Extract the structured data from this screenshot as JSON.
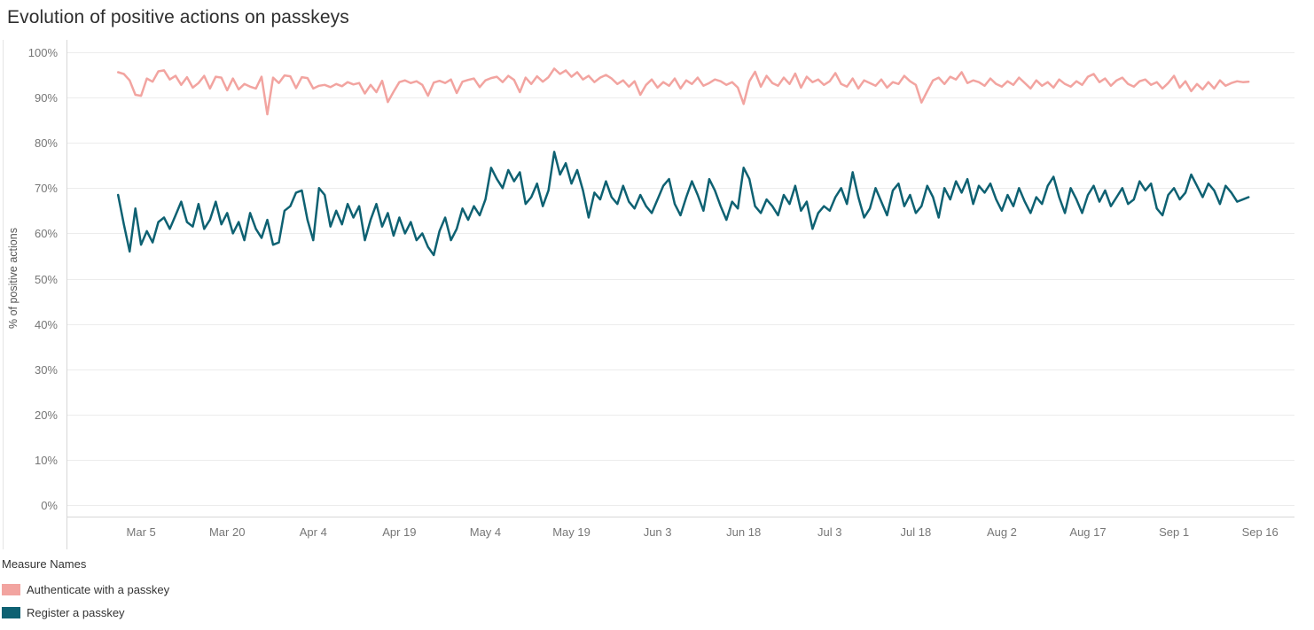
{
  "title": "Evolution of positive actions on passkeys",
  "chart_data": {
    "type": "line",
    "title": "Evolution of positive actions on passkeys",
    "xlabel": "",
    "ylabel": "% of positive actions",
    "ylim": [
      0,
      100
    ],
    "y_tick_step": 10,
    "y_tick_labels": [
      "0%",
      "10%",
      "20%",
      "30%",
      "40%",
      "50%",
      "60%",
      "70%",
      "80%",
      "90%",
      "100%"
    ],
    "grid": true,
    "legend_title": "Measure Names",
    "legend_position": "bottom-left",
    "x_unit": "day (index 0 = Mar 1, daily points)",
    "x_domain": [
      -9,
      205
    ],
    "x_ticks": [
      {
        "day": 4,
        "label": "Mar 5"
      },
      {
        "day": 19,
        "label": "Mar 20"
      },
      {
        "day": 34,
        "label": "Apr 4"
      },
      {
        "day": 49,
        "label": "Apr 19"
      },
      {
        "day": 64,
        "label": "May 4"
      },
      {
        "day": 79,
        "label": "May 19"
      },
      {
        "day": 94,
        "label": "Jun 3"
      },
      {
        "day": 109,
        "label": "Jun 18"
      },
      {
        "day": 124,
        "label": "Jul 3"
      },
      {
        "day": 139,
        "label": "Jul 18"
      },
      {
        "day": 154,
        "label": "Aug 2"
      },
      {
        "day": 169,
        "label": "Aug 17"
      },
      {
        "day": 184,
        "label": "Sep 1"
      },
      {
        "day": 199,
        "label": "Sep 16"
      }
    ],
    "series": [
      {
        "id": "authenticate",
        "name": "Authenticate with a passkey",
        "color": "#F2A4A0",
        "values": [
          95.6,
          95.2,
          93.8,
          90.6,
          90.4,
          94.2,
          93.5,
          95.8,
          96.0,
          94.0,
          94.8,
          92.8,
          94.5,
          92.2,
          93.2,
          94.8,
          92.0,
          94.6,
          94.4,
          91.6,
          94.2,
          91.8,
          93.0,
          92.4,
          92.0,
          94.6,
          86.3,
          94.4,
          93.2,
          94.9,
          94.7,
          92.1,
          94.5,
          94.3,
          92.0,
          92.6,
          92.8,
          92.3,
          93.0,
          92.5,
          93.4,
          92.9,
          93.2,
          90.9,
          92.8,
          91.2,
          93.7,
          89.0,
          91.3,
          93.4,
          93.8,
          93.2,
          93.6,
          92.8,
          90.4,
          93.3,
          93.7,
          93.2,
          94.0,
          91.0,
          93.5,
          93.9,
          94.2,
          92.3,
          93.8,
          94.3,
          94.6,
          93.4,
          94.8,
          93.9,
          91.2,
          94.4,
          93.0,
          94.7,
          93.5,
          94.5,
          96.4,
          95.2,
          96.0,
          94.6,
          95.6,
          94.0,
          94.8,
          93.4,
          94.4,
          95.0,
          94.2,
          93.0,
          93.8,
          92.4,
          93.6,
          90.6,
          92.8,
          94.0,
          92.2,
          93.4,
          92.6,
          94.2,
          92.0,
          93.8,
          93.0,
          94.4,
          92.6,
          93.2,
          94.0,
          93.6,
          92.8,
          93.4,
          92.2,
          88.6,
          93.6,
          95.7,
          92.4,
          94.8,
          93.2,
          92.6,
          94.4,
          93.0,
          95.3,
          92.2,
          94.6,
          93.4,
          94.0,
          92.8,
          93.6,
          95.4,
          93.0,
          92.4,
          94.2,
          92.0,
          93.8,
          93.2,
          92.6,
          94.0,
          92.2,
          93.4,
          93.0,
          94.8,
          93.6,
          92.8,
          88.9,
          91.4,
          93.8,
          94.4,
          93.0,
          94.6,
          94.0,
          95.6,
          93.2,
          93.8,
          93.4,
          92.6,
          94.2,
          93.0,
          92.4,
          93.6,
          92.8,
          94.4,
          93.2,
          92.0,
          93.8,
          92.6,
          93.4,
          92.2,
          94.0,
          93.0,
          92.4,
          93.6,
          92.8,
          94.6,
          95.2,
          93.4,
          94.2,
          92.6,
          93.8,
          94.4,
          93.0,
          92.4,
          93.6,
          94.0,
          92.8,
          93.4,
          92.0,
          93.2,
          94.8,
          92.2,
          93.6,
          91.4,
          93.0,
          91.8,
          93.4,
          92.0,
          93.8,
          92.6,
          93.2,
          93.6,
          93.4,
          93.5
        ]
      },
      {
        "id": "register",
        "name": "Register a passkey",
        "color": "#0E6172",
        "values": [
          68.5,
          62.0,
          56.0,
          65.5,
          57.5,
          60.5,
          58.0,
          62.5,
          63.5,
          61.0,
          64.0,
          67.0,
          62.5,
          61.5,
          66.5,
          61.0,
          63.0,
          67.0,
          62.0,
          64.5,
          60.0,
          62.5,
          58.5,
          64.5,
          61.0,
          59.0,
          63.0,
          57.5,
          58.0,
          65.0,
          66.0,
          69.0,
          69.5,
          63.0,
          58.5,
          70.0,
          68.5,
          61.5,
          65.0,
          62.0,
          66.5,
          63.5,
          66.0,
          58.5,
          63.0,
          66.5,
          61.5,
          64.5,
          59.5,
          63.5,
          60.0,
          62.5,
          58.5,
          60.0,
          57.0,
          55.2,
          60.5,
          63.5,
          58.5,
          61.0,
          65.5,
          63.0,
          66.0,
          64.0,
          67.5,
          74.5,
          72.0,
          70.0,
          74.0,
          71.5,
          73.5,
          66.5,
          68.0,
          71.0,
          66.0,
          69.5,
          78.0,
          73.0,
          75.5,
          71.0,
          74.0,
          69.5,
          63.5,
          69.0,
          67.5,
          71.5,
          68.0,
          66.5,
          70.5,
          67.0,
          65.5,
          68.5,
          66.0,
          64.5,
          67.5,
          70.5,
          72.0,
          66.5,
          64.0,
          68.0,
          71.5,
          68.5,
          65.0,
          72.0,
          69.5,
          66.0,
          63.0,
          67.0,
          65.5,
          74.5,
          72.0,
          66.0,
          64.5,
          67.5,
          66.0,
          64.0,
          68.5,
          66.5,
          70.5,
          65.0,
          67.0,
          61.0,
          64.5,
          66.0,
          65.0,
          68.0,
          70.0,
          66.5,
          73.5,
          68.0,
          63.5,
          65.5,
          70.0,
          67.0,
          64.0,
          69.5,
          71.0,
          66.0,
          68.5,
          64.5,
          66.0,
          70.5,
          68.0,
          63.5,
          70.0,
          67.5,
          71.5,
          69.0,
          72.0,
          66.5,
          70.5,
          69.0,
          71.0,
          67.5,
          65.0,
          68.5,
          66.0,
          70.0,
          67.0,
          64.5,
          68.0,
          66.5,
          70.5,
          72.5,
          68.0,
          64.5,
          70.0,
          67.5,
          64.5,
          68.5,
          70.5,
          67.0,
          69.5,
          66.0,
          68.0,
          70.0,
          66.5,
          67.5,
          71.5,
          69.5,
          71.0,
          65.5,
          64.0,
          68.5,
          70.0,
          67.5,
          69.0,
          73.0,
          70.5,
          68.0,
          71.0,
          69.5,
          66.5,
          70.5,
          69.0,
          67.0,
          67.5,
          68.0
        ]
      }
    ]
  },
  "legend": {
    "title": "Measure Names",
    "items": [
      {
        "label": "Authenticate with a passkey",
        "color": "#F2A4A0"
      },
      {
        "label": "Register a passkey",
        "color": "#0E6172"
      }
    ]
  }
}
